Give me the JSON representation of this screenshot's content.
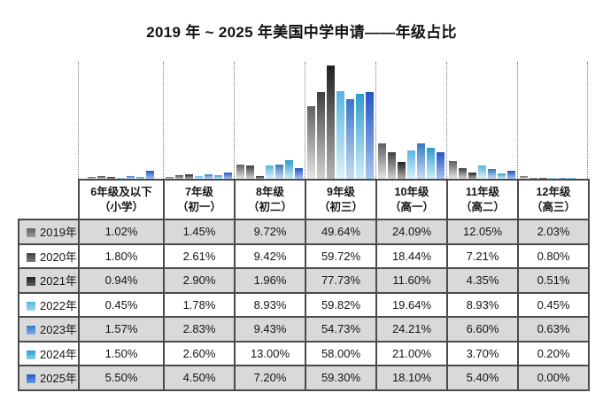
{
  "title": "2019 年 ~ 2025 年美国中学申请——年级占比",
  "chart_data": {
    "type": "bar",
    "title": "2019 年 ~ 2025 年美国中学申请——年级占比",
    "categories": [
      "6年级及以下（小学）",
      "7年级（初一）",
      "8年级（初二）",
      "9年级（初三）",
      "10年级（高一）",
      "11年级（高二）",
      "12年级（高三）"
    ],
    "unit": "%",
    "ylim": [
      0,
      80
    ],
    "grid": "dotted-vertical-separators-between-groups",
    "legend_position": "table-first-column",
    "series": [
      {
        "name": "2019年",
        "swatch_color": "#9a9a9a",
        "bar_top": "#606060",
        "bar_bottom": "#e6e6e6",
        "values": [
          1.02,
          1.45,
          9.72,
          49.64,
          24.09,
          12.05,
          2.03
        ]
      },
      {
        "name": "2020年",
        "swatch_color": "#7a7a7a",
        "bar_top": "#404040",
        "bar_bottom": "#d2d2d2",
        "values": [
          1.8,
          2.61,
          9.42,
          59.72,
          18.44,
          7.21,
          0.8
        ]
      },
      {
        "name": "2021年",
        "swatch_color": "#5c5c5c",
        "bar_top": "#1f1f1f",
        "bar_bottom": "#b4b4b4",
        "values": [
          0.94,
          2.9,
          1.96,
          77.73,
          11.6,
          4.35,
          0.51
        ]
      },
      {
        "name": "2022年",
        "swatch_color": "#9ed7f2",
        "bar_top": "#58b4e2",
        "bar_bottom": "#def2fb",
        "values": [
          0.45,
          1.78,
          8.93,
          59.82,
          19.64,
          8.93,
          0.45
        ]
      },
      {
        "name": "2023年",
        "swatch_color": "#7fb0e4",
        "bar_top": "#3877c4",
        "bar_bottom": "#c8def3",
        "values": [
          1.57,
          2.83,
          9.43,
          54.73,
          24.21,
          6.6,
          0.63
        ]
      },
      {
        "name": "2024年",
        "swatch_color": "#85d0ee",
        "bar_top": "#2c9cce",
        "bar_bottom": "#cfeef8",
        "values": [
          1.5,
          2.6,
          13.0,
          58.0,
          21.0,
          3.7,
          0.2
        ]
      },
      {
        "name": "2025年",
        "swatch_color": "#6f9de4",
        "bar_top": "#2256c3",
        "bar_bottom": "#a6c4ee",
        "values": [
          5.5,
          4.5,
          7.2,
          59.3,
          18.1,
          5.4,
          0.0
        ]
      }
    ]
  },
  "table": {
    "column_headers": [
      {
        "line1": "6年级及以下",
        "line2": "（小学）"
      },
      {
        "line1": "7年级",
        "line2": "（初一）"
      },
      {
        "line1": "8年级",
        "line2": "（初二）"
      },
      {
        "line1": "9年级",
        "line2": "（初三）"
      },
      {
        "line1": "10年级",
        "line2": "（高一）"
      },
      {
        "line1": "11年级",
        "line2": "（高二）"
      },
      {
        "line1": "12年级",
        "line2": "（高三）"
      }
    ],
    "rows": [
      {
        "year": "2019年",
        "values": [
          "1.02%",
          "1.45%",
          "9.72%",
          "49.64%",
          "24.09%",
          "12.05%",
          "2.03%"
        ]
      },
      {
        "year": "2020年",
        "values": [
          "1.80%",
          "2.61%",
          "9.42%",
          "59.72%",
          "18.44%",
          "7.21%",
          "0.80%"
        ]
      },
      {
        "year": "2021年",
        "values": [
          "0.94%",
          "2.90%",
          "1.96%",
          "77.73%",
          "11.60%",
          "4.35%",
          "0.51%"
        ]
      },
      {
        "year": "2022年",
        "values": [
          "0.45%",
          "1.78%",
          "8.93%",
          "59.82%",
          "19.64%",
          "8.93%",
          "0.45%"
        ]
      },
      {
        "year": "2023年",
        "values": [
          "1.57%",
          "2.83%",
          "9.43%",
          "54.73%",
          "24.21%",
          "6.60%",
          "0.63%"
        ]
      },
      {
        "year": "2024年",
        "values": [
          "1.50%",
          "2.60%",
          "13.00%",
          "58.00%",
          "21.00%",
          "3.70%",
          "0.20%"
        ]
      },
      {
        "year": "2025年",
        "values": [
          "5.50%",
          "4.50%",
          "7.20%",
          "59.30%",
          "18.10%",
          "5.40%",
          "0.00%"
        ]
      }
    ]
  },
  "colors": {
    "row_stripe": "#d9d9d9",
    "table_border": "#4a4a4a",
    "background": "#ffffff"
  }
}
